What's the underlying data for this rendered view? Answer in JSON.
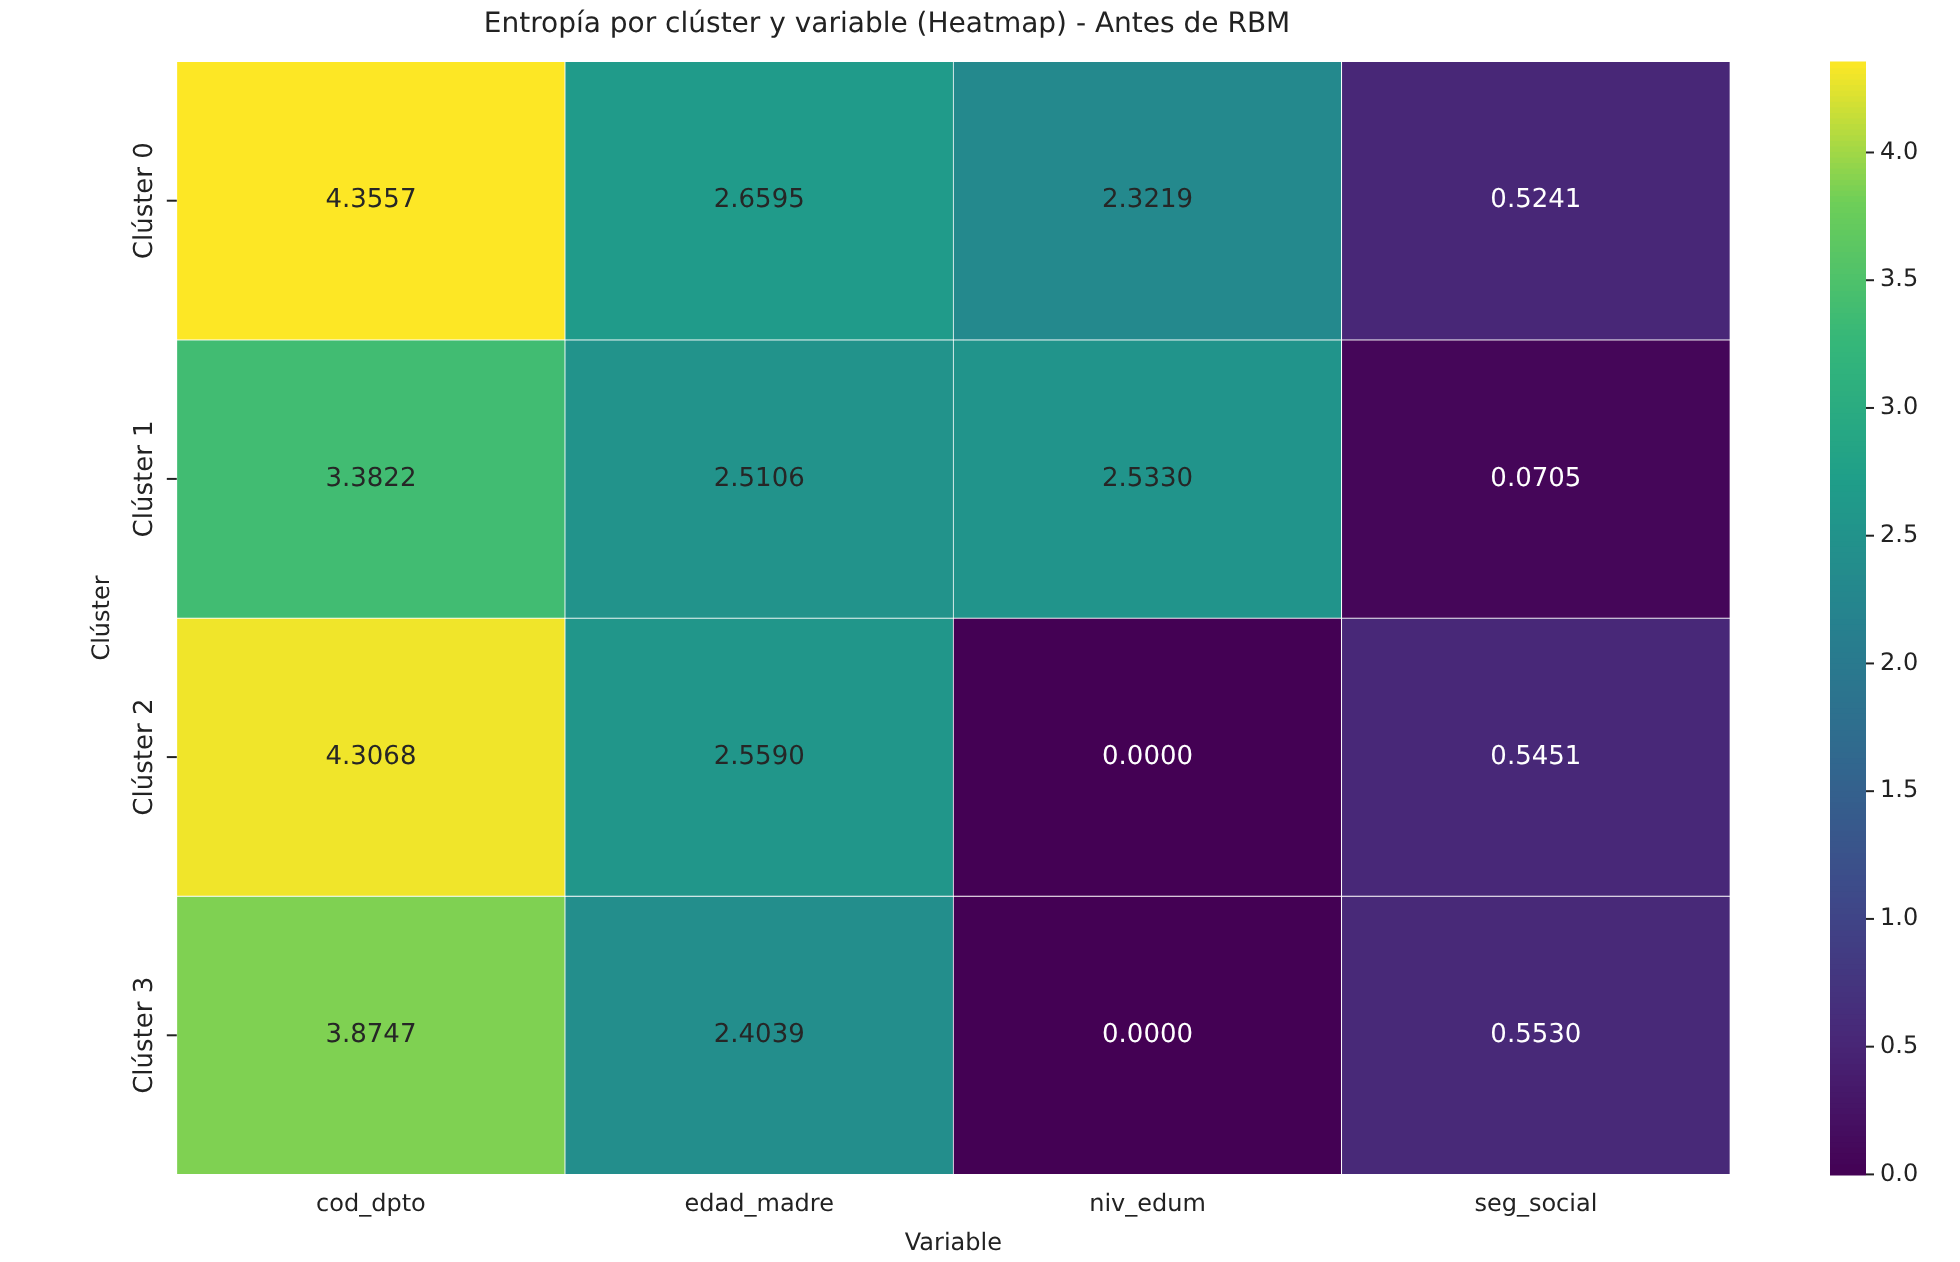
{
  "chart_data": {
    "type": "heatmap",
    "title": "Entropía por clúster y variable (Heatmap) - Antes de RBM",
    "xlabel": "Variable",
    "ylabel": "Clúster",
    "categories": [
      "cod_dpto",
      "edad_madre",
      "niv_edum",
      "seg_social"
    ],
    "y_categories": [
      "Clúster 0",
      "Clúster 1",
      "Clúster 2",
      "Clúster 3"
    ],
    "cells": [
      [
        4.3557,
        2.6595,
        2.3219,
        0.5241
      ],
      [
        3.3822,
        2.5106,
        2.533,
        0.0705
      ],
      [
        4.3068,
        2.559,
        0,
        0.5451
      ],
      [
        3.8747,
        2.4039,
        0,
        0.553
      ]
    ],
    "cell_labels": [
      [
        "4.3557",
        "2.6595",
        "2.3219",
        "0.5241"
      ],
      [
        "3.3822",
        "2.5106",
        "2.5330",
        "0.0705"
      ],
      [
        "4.3068",
        "2.5590",
        "0.0000",
        "0.5451"
      ],
      [
        "3.8747",
        "2.4039",
        "0.0000",
        "0.5530"
      ]
    ],
    "clim": [
      0,
      4.3557
    ],
    "cticks": [
      {
        "value": 0,
        "label": "0.0"
      },
      {
        "value": 0.5,
        "label": "0.5"
      },
      {
        "value": 1,
        "label": "1.0"
      },
      {
        "value": 1.5,
        "label": "1.5"
      },
      {
        "value": 2,
        "label": "2.0"
      },
      {
        "value": 2.5,
        "label": "2.5"
      },
      {
        "value": 3,
        "label": "3.0"
      },
      {
        "value": 3.5,
        "label": "3.5"
      },
      {
        "value": 4,
        "label": "4.0"
      }
    ]
  }
}
